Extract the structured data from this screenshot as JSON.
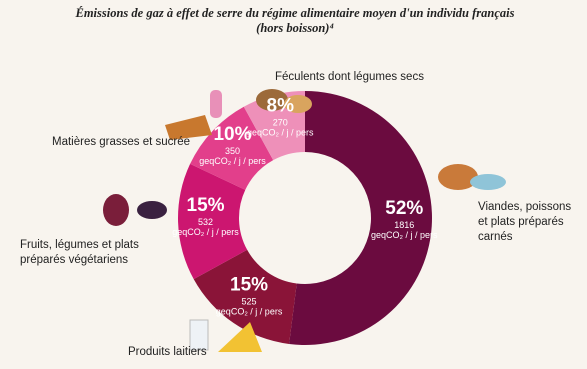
{
  "chart_data": {
    "type": "donut",
    "title": "Émissions de gaz à effet de serre du régime alimentaire moyen d'un individu français (hors boisson)⁴",
    "categories": [
      "Viandes, poissons et plats préparés carnés",
      "Produits laitiers",
      "Fruits, légumes et plats préparés végétariens",
      "Matières grasses et sucrée",
      "Féculents dont légumes secs"
    ],
    "values": [
      52,
      15,
      15,
      10,
      8
    ],
    "value_labels": [
      "52%",
      "15%",
      "15%",
      "10%",
      "8%"
    ],
    "emissions": [
      1816,
      525,
      532,
      350,
      270
    ],
    "unit": "geqCO₂ / j / pers",
    "colors": [
      "#6b0b3f",
      "#8a1438",
      "#cc1670",
      "#e23f8b",
      "#ee90b9"
    ]
  }
}
